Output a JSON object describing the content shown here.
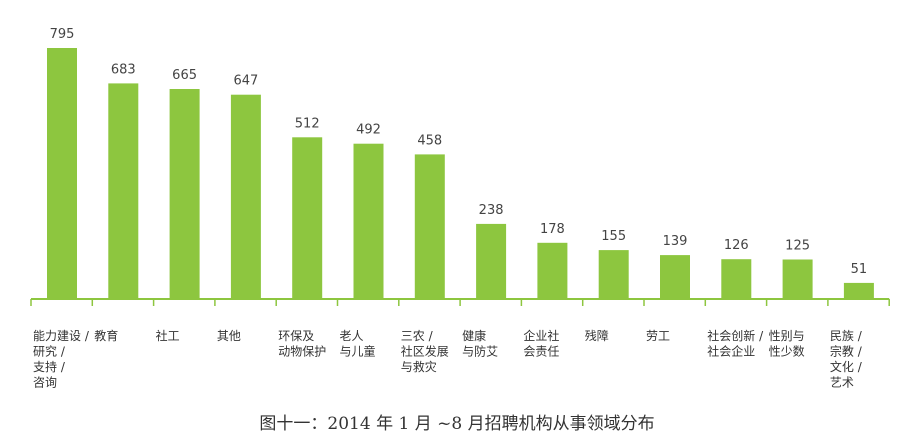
{
  "chart_data": {
    "type": "bar",
    "title": "图十一：2014 年 1 月 ~8 月招聘机构从事领域分布",
    "categories": [
      [
        "能力建设 /",
        "研究 /",
        "支持 /",
        "咨询"
      ],
      [
        "教育"
      ],
      [
        "社工"
      ],
      [
        "其他"
      ],
      [
        "环保及",
        "动物保护"
      ],
      [
        "老人",
        "与儿童"
      ],
      [
        "三农 /",
        "社区发展",
        "与救灾"
      ],
      [
        "健康",
        "与防艾"
      ],
      [
        "企业社",
        "会责任"
      ],
      [
        "残障"
      ],
      [
        "劳工"
      ],
      [
        "社会创新 /",
        "社会企业"
      ],
      [
        "性别与",
        "性少数"
      ],
      [
        "民族 /",
        "宗教 /",
        "文化 /",
        "艺术"
      ]
    ],
    "values": [
      795,
      683,
      665,
      647,
      512,
      492,
      458,
      238,
      178,
      155,
      139,
      126,
      125,
      51
    ],
    "data_labels": [
      "795",
      "683",
      "665",
      "647",
      "512",
      "492",
      "458",
      "238",
      "178",
      "155",
      "139",
      "126",
      "125",
      "51"
    ],
    "xlabel": "",
    "ylabel": "",
    "ylim": [
      0,
      795
    ],
    "grid": false,
    "legend": "none",
    "colors": {
      "bar": "#8dc63f",
      "axis": "#8dc63f"
    }
  }
}
